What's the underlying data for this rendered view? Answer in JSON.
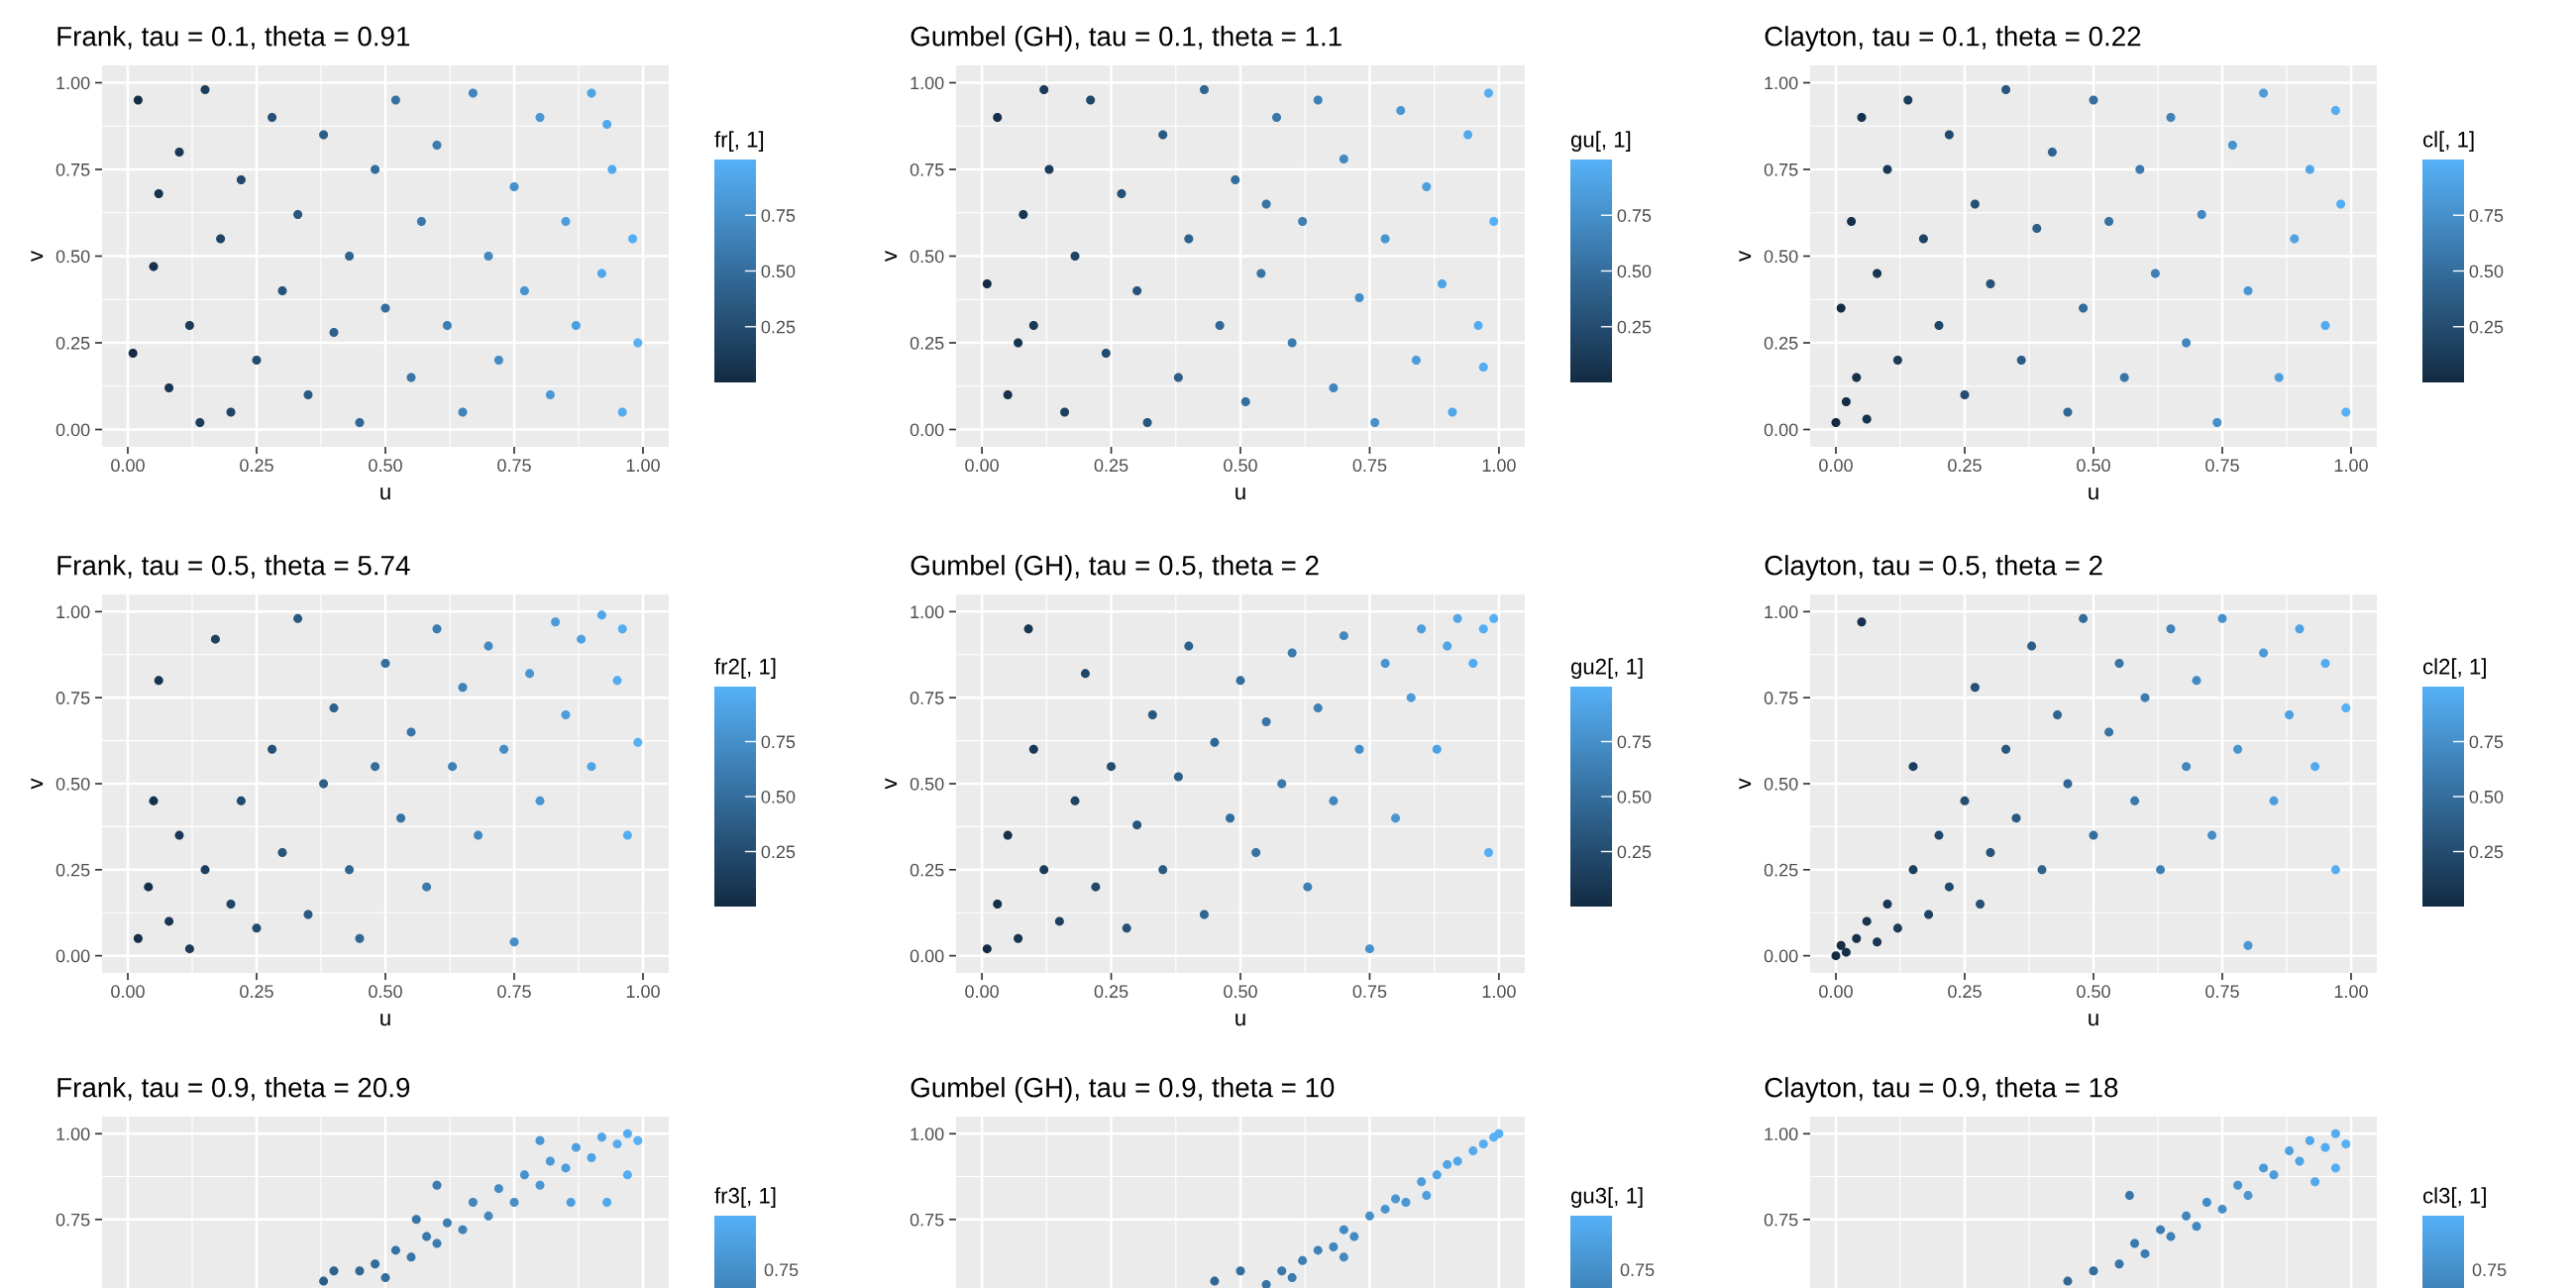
{
  "chart_data": [
    {
      "type": "scatter",
      "title": "Frank, tau = 0.1, theta = 0.91",
      "xlabel": "u",
      "ylabel": "v",
      "clabel": "fr[, 1]",
      "xlim": [
        -0.05,
        1.05
      ],
      "ylim": [
        -0.05,
        1.05
      ],
      "xticks": [
        {
          "value": 0,
          "label": "0.00"
        },
        {
          "value": 0.25,
          "label": "0.25"
        },
        {
          "value": 0.5,
          "label": "0.50"
        },
        {
          "value": 0.75,
          "label": "0.75"
        },
        {
          "value": 1,
          "label": "1.00"
        }
      ],
      "yticks": [
        {
          "value": 0,
          "label": "0.00"
        },
        {
          "value": 0.25,
          "label": "0.25"
        },
        {
          "value": 0.5,
          "label": "0.50"
        },
        {
          "value": 0.75,
          "label": "0.75"
        },
        {
          "value": 1,
          "label": "1.00"
        }
      ],
      "clim": [
        0,
        1
      ],
      "cticks": [
        {
          "value": 0.25,
          "label": "0.25"
        },
        {
          "value": 0.5,
          "label": "0.50"
        },
        {
          "value": 0.75,
          "label": "0.75"
        }
      ],
      "grid": true,
      "marker": "circle",
      "x": [
        0.02,
        0.05,
        0.08,
        0.1,
        0.12,
        0.15,
        0.18,
        0.2,
        0.22,
        0.25,
        0.28,
        0.3,
        0.33,
        0.35,
        0.38,
        0.4,
        0.43,
        0.45,
        0.48,
        0.5,
        0.52,
        0.55,
        0.57,
        0.6,
        0.62,
        0.65,
        0.67,
        0.7,
        0.72,
        0.75,
        0.77,
        0.8,
        0.82,
        0.85,
        0.87,
        0.9,
        0.92,
        0.94,
        0.96,
        0.98,
        0.99,
        0.01,
        0.06,
        0.14,
        0.93
      ],
      "values": [
        0.95,
        0.47,
        0.12,
        0.8,
        0.3,
        0.98,
        0.55,
        0.05,
        0.72,
        0.2,
        0.9,
        0.4,
        0.62,
        0.1,
        0.85,
        0.28,
        0.5,
        0.02,
        0.75,
        0.35,
        0.95,
        0.15,
        0.6,
        0.82,
        0.3,
        0.05,
        0.97,
        0.5,
        0.2,
        0.7,
        0.4,
        0.9,
        0.1,
        0.6,
        0.3,
        0.97,
        0.45,
        0.75,
        0.05,
        0.55,
        0.25,
        0.22,
        0.68,
        0.02,
        0.88
      ],
      "cvalues": [
        0.02,
        0.05,
        0.08,
        0.1,
        0.12,
        0.15,
        0.18,
        0.2,
        0.22,
        0.25,
        0.28,
        0.3,
        0.33,
        0.35,
        0.38,
        0.4,
        0.43,
        0.45,
        0.48,
        0.5,
        0.52,
        0.55,
        0.57,
        0.6,
        0.62,
        0.65,
        0.67,
        0.7,
        0.72,
        0.75,
        0.77,
        0.8,
        0.82,
        0.85,
        0.87,
        0.9,
        0.92,
        0.94,
        0.96,
        0.98,
        0.99,
        0.01,
        0.06,
        0.14,
        0.93
      ]
    },
    {
      "type": "scatter",
      "title": "Gumbel (GH), tau = 0.1, theta = 1.1",
      "xlabel": "u",
      "ylabel": "v",
      "clabel": "gu[, 1]",
      "xlim": [
        -0.05,
        1.05
      ],
      "ylim": [
        -0.05,
        1.05
      ],
      "xticks": [
        {
          "value": 0,
          "label": "0.00"
        },
        {
          "value": 0.25,
          "label": "0.25"
        },
        {
          "value": 0.5,
          "label": "0.50"
        },
        {
          "value": 0.75,
          "label": "0.75"
        },
        {
          "value": 1,
          "label": "1.00"
        }
      ],
      "yticks": [
        {
          "value": 0,
          "label": "0.00"
        },
        {
          "value": 0.25,
          "label": "0.25"
        },
        {
          "value": 0.5,
          "label": "0.50"
        },
        {
          "value": 0.75,
          "label": "0.75"
        },
        {
          "value": 1,
          "label": "1.00"
        }
      ],
      "clim": [
        0,
        1
      ],
      "cticks": [
        {
          "value": 0.25,
          "label": "0.25"
        },
        {
          "value": 0.5,
          "label": "0.50"
        },
        {
          "value": 0.75,
          "label": "0.75"
        }
      ],
      "grid": true,
      "marker": "circle",
      "x": [
        0.01,
        0.03,
        0.05,
        0.08,
        0.1,
        0.13,
        0.16,
        0.18,
        0.21,
        0.24,
        0.27,
        0.3,
        0.32,
        0.35,
        0.38,
        0.4,
        0.43,
        0.46,
        0.49,
        0.51,
        0.54,
        0.57,
        0.6,
        0.62,
        0.65,
        0.68,
        0.7,
        0.73,
        0.76,
        0.78,
        0.81,
        0.84,
        0.86,
        0.89,
        0.91,
        0.94,
        0.96,
        0.98,
        0.99,
        0.97,
        0.07,
        0.12,
        0.55
      ],
      "values": [
        0.42,
        0.9,
        0.1,
        0.62,
        0.3,
        0.75,
        0.05,
        0.5,
        0.95,
        0.22,
        0.68,
        0.4,
        0.02,
        0.85,
        0.15,
        0.55,
        0.98,
        0.3,
        0.72,
        0.08,
        0.45,
        0.9,
        0.25,
        0.6,
        0.95,
        0.12,
        0.78,
        0.38,
        0.02,
        0.55,
        0.92,
        0.2,
        0.7,
        0.42,
        0.05,
        0.85,
        0.3,
        0.97,
        0.6,
        0.18,
        0.25,
        0.98,
        0.65
      ],
      "cvalues": [
        0.01,
        0.03,
        0.05,
        0.08,
        0.1,
        0.13,
        0.16,
        0.18,
        0.21,
        0.24,
        0.27,
        0.3,
        0.32,
        0.35,
        0.38,
        0.4,
        0.43,
        0.46,
        0.49,
        0.51,
        0.54,
        0.57,
        0.6,
        0.62,
        0.65,
        0.68,
        0.7,
        0.73,
        0.76,
        0.78,
        0.81,
        0.84,
        0.86,
        0.89,
        0.91,
        0.94,
        0.96,
        0.98,
        0.99,
        0.97,
        0.07,
        0.12,
        0.55
      ]
    },
    {
      "type": "scatter",
      "title": "Clayton, tau = 0.1, theta = 0.22",
      "xlabel": "u",
      "ylabel": "v",
      "clabel": "cl[, 1]",
      "xlim": [
        -0.05,
        1.05
      ],
      "ylim": [
        -0.05,
        1.05
      ],
      "xticks": [
        {
          "value": 0,
          "label": "0.00"
        },
        {
          "value": 0.25,
          "label": "0.25"
        },
        {
          "value": 0.5,
          "label": "0.50"
        },
        {
          "value": 0.75,
          "label": "0.75"
        },
        {
          "value": 1,
          "label": "1.00"
        }
      ],
      "yticks": [
        {
          "value": 0,
          "label": "0.00"
        },
        {
          "value": 0.25,
          "label": "0.25"
        },
        {
          "value": 0.5,
          "label": "0.50"
        },
        {
          "value": 0.75,
          "label": "0.75"
        },
        {
          "value": 1,
          "label": "1.00"
        }
      ],
      "clim": [
        0,
        1
      ],
      "cticks": [
        {
          "value": 0.25,
          "label": "0.25"
        },
        {
          "value": 0.5,
          "label": "0.50"
        },
        {
          "value": 0.75,
          "label": "0.75"
        }
      ],
      "grid": true,
      "marker": "circle",
      "x": [
        0.0,
        0.02,
        0.04,
        0.06,
        0.01,
        0.03,
        0.05,
        0.08,
        0.1,
        0.12,
        0.14,
        0.17,
        0.2,
        0.22,
        0.25,
        0.27,
        0.3,
        0.33,
        0.36,
        0.39,
        0.42,
        0.45,
        0.48,
        0.5,
        0.53,
        0.56,
        0.59,
        0.62,
        0.65,
        0.68,
        0.71,
        0.74,
        0.77,
        0.8,
        0.83,
        0.86,
        0.89,
        0.92,
        0.95,
        0.97,
        0.99,
        0.98
      ],
      "values": [
        0.02,
        0.08,
        0.15,
        0.03,
        0.35,
        0.6,
        0.9,
        0.45,
        0.75,
        0.2,
        0.95,
        0.55,
        0.3,
        0.85,
        0.1,
        0.65,
        0.42,
        0.98,
        0.2,
        0.58,
        0.8,
        0.05,
        0.35,
        0.95,
        0.6,
        0.15,
        0.75,
        0.45,
        0.9,
        0.25,
        0.62,
        0.02,
        0.82,
        0.4,
        0.97,
        0.15,
        0.55,
        0.75,
        0.3,
        0.92,
        0.05,
        0.65
      ],
      "cvalues": [
        0.0,
        0.02,
        0.04,
        0.06,
        0.01,
        0.03,
        0.05,
        0.08,
        0.1,
        0.12,
        0.14,
        0.17,
        0.2,
        0.22,
        0.25,
        0.27,
        0.3,
        0.33,
        0.36,
        0.39,
        0.42,
        0.45,
        0.48,
        0.5,
        0.53,
        0.56,
        0.59,
        0.62,
        0.65,
        0.68,
        0.71,
        0.74,
        0.77,
        0.8,
        0.83,
        0.86,
        0.89,
        0.92,
        0.95,
        0.97,
        0.99,
        0.98
      ]
    },
    {
      "type": "scatter",
      "title": "Frank, tau = 0.5, theta = 5.74",
      "xlabel": "u",
      "ylabel": "v",
      "clabel": "fr2[, 1]",
      "xlim": [
        -0.05,
        1.05
      ],
      "ylim": [
        -0.05,
        1.05
      ],
      "xticks": [
        {
          "value": 0,
          "label": "0.00"
        },
        {
          "value": 0.25,
          "label": "0.25"
        },
        {
          "value": 0.5,
          "label": "0.50"
        },
        {
          "value": 0.75,
          "label": "0.75"
        },
        {
          "value": 1,
          "label": "1.00"
        }
      ],
      "yticks": [
        {
          "value": 0,
          "label": "0.00"
        },
        {
          "value": 0.25,
          "label": "0.25"
        },
        {
          "value": 0.5,
          "label": "0.50"
        },
        {
          "value": 0.75,
          "label": "0.75"
        },
        {
          "value": 1,
          "label": "1.00"
        }
      ],
      "clim": [
        0,
        1
      ],
      "cticks": [
        {
          "value": 0.25,
          "label": "0.25"
        },
        {
          "value": 0.5,
          "label": "0.50"
        },
        {
          "value": 0.75,
          "label": "0.75"
        }
      ],
      "grid": true,
      "marker": "circle",
      "x": [
        0.02,
        0.04,
        0.06,
        0.08,
        0.1,
        0.12,
        0.15,
        0.17,
        0.2,
        0.22,
        0.25,
        0.28,
        0.3,
        0.33,
        0.35,
        0.38,
        0.4,
        0.43,
        0.45,
        0.48,
        0.5,
        0.53,
        0.55,
        0.58,
        0.6,
        0.63,
        0.65,
        0.68,
        0.7,
        0.73,
        0.75,
        0.78,
        0.8,
        0.83,
        0.85,
        0.88,
        0.9,
        0.92,
        0.95,
        0.97,
        0.99,
        0.96,
        0.05
      ],
      "values": [
        0.05,
        0.2,
        0.8,
        0.1,
        0.35,
        0.02,
        0.25,
        0.92,
        0.15,
        0.45,
        0.08,
        0.6,
        0.3,
        0.98,
        0.12,
        0.5,
        0.72,
        0.25,
        0.05,
        0.55,
        0.85,
        0.4,
        0.65,
        0.2,
        0.95,
        0.55,
        0.78,
        0.35,
        0.9,
        0.6,
        0.04,
        0.82,
        0.45,
        0.97,
        0.7,
        0.92,
        0.55,
        0.99,
        0.8,
        0.35,
        0.62,
        0.95,
        0.45
      ],
      "cvalues": [
        0.02,
        0.04,
        0.06,
        0.08,
        0.1,
        0.12,
        0.15,
        0.17,
        0.2,
        0.22,
        0.25,
        0.28,
        0.3,
        0.33,
        0.35,
        0.38,
        0.4,
        0.43,
        0.45,
        0.48,
        0.5,
        0.53,
        0.55,
        0.58,
        0.6,
        0.63,
        0.65,
        0.68,
        0.7,
        0.73,
        0.75,
        0.78,
        0.8,
        0.83,
        0.85,
        0.88,
        0.9,
        0.92,
        0.95,
        0.97,
        0.99,
        0.96,
        0.05
      ]
    },
    {
      "type": "scatter",
      "title": "Gumbel (GH), tau = 0.5, theta = 2",
      "xlabel": "u",
      "ylabel": "v",
      "clabel": "gu2[, 1]",
      "xlim": [
        -0.05,
        1.05
      ],
      "ylim": [
        -0.05,
        1.05
      ],
      "xticks": [
        {
          "value": 0,
          "label": "0.00"
        },
        {
          "value": 0.25,
          "label": "0.25"
        },
        {
          "value": 0.5,
          "label": "0.50"
        },
        {
          "value": 0.75,
          "label": "0.75"
        },
        {
          "value": 1,
          "label": "1.00"
        }
      ],
      "yticks": [
        {
          "value": 0,
          "label": "0.00"
        },
        {
          "value": 0.25,
          "label": "0.25"
        },
        {
          "value": 0.5,
          "label": "0.50"
        },
        {
          "value": 0.75,
          "label": "0.75"
        },
        {
          "value": 1,
          "label": "1.00"
        }
      ],
      "clim": [
        0,
        1
      ],
      "cticks": [
        {
          "value": 0.25,
          "label": "0.25"
        },
        {
          "value": 0.5,
          "label": "0.50"
        },
        {
          "value": 0.75,
          "label": "0.75"
        }
      ],
      "grid": true,
      "marker": "circle",
      "x": [
        0.01,
        0.03,
        0.05,
        0.07,
        0.09,
        0.1,
        0.12,
        0.15,
        0.18,
        0.2,
        0.22,
        0.25,
        0.28,
        0.3,
        0.33,
        0.35,
        0.38,
        0.4,
        0.43,
        0.45,
        0.48,
        0.5,
        0.53,
        0.55,
        0.58,
        0.6,
        0.63,
        0.65,
        0.68,
        0.7,
        0.73,
        0.75,
        0.78,
        0.8,
        0.83,
        0.85,
        0.88,
        0.9,
        0.92,
        0.95,
        0.97,
        0.99,
        0.98
      ],
      "values": [
        0.02,
        0.15,
        0.35,
        0.05,
        0.95,
        0.6,
        0.25,
        0.1,
        0.45,
        0.82,
        0.2,
        0.55,
        0.08,
        0.38,
        0.7,
        0.25,
        0.52,
        0.9,
        0.12,
        0.62,
        0.4,
        0.8,
        0.3,
        0.68,
        0.5,
        0.88,
        0.2,
        0.72,
        0.45,
        0.93,
        0.6,
        0.02,
        0.85,
        0.4,
        0.75,
        0.95,
        0.6,
        0.9,
        0.98,
        0.85,
        0.95,
        0.98,
        0.3
      ],
      "cvalues": [
        0.01,
        0.03,
        0.05,
        0.07,
        0.09,
        0.1,
        0.12,
        0.15,
        0.18,
        0.2,
        0.22,
        0.25,
        0.28,
        0.3,
        0.33,
        0.35,
        0.38,
        0.4,
        0.43,
        0.45,
        0.48,
        0.5,
        0.53,
        0.55,
        0.58,
        0.6,
        0.63,
        0.65,
        0.68,
        0.7,
        0.73,
        0.75,
        0.78,
        0.8,
        0.83,
        0.85,
        0.88,
        0.9,
        0.92,
        0.95,
        0.97,
        0.99,
        0.98
      ]
    },
    {
      "type": "scatter",
      "title": "Clayton, tau = 0.5, theta = 2",
      "xlabel": "u",
      "ylabel": "v",
      "clabel": "cl2[, 1]",
      "xlim": [
        -0.05,
        1.05
      ],
      "ylim": [
        -0.05,
        1.05
      ],
      "xticks": [
        {
          "value": 0,
          "label": "0.00"
        },
        {
          "value": 0.25,
          "label": "0.25"
        },
        {
          "value": 0.5,
          "label": "0.50"
        },
        {
          "value": 0.75,
          "label": "0.75"
        },
        {
          "value": 1,
          "label": "1.00"
        }
      ],
      "yticks": [
        {
          "value": 0,
          "label": "0.00"
        },
        {
          "value": 0.25,
          "label": "0.25"
        },
        {
          "value": 0.5,
          "label": "0.50"
        },
        {
          "value": 0.75,
          "label": "0.75"
        },
        {
          "value": 1,
          "label": "1.00"
        }
      ],
      "clim": [
        0,
        1
      ],
      "cticks": [
        {
          "value": 0.25,
          "label": "0.25"
        },
        {
          "value": 0.5,
          "label": "0.50"
        },
        {
          "value": 0.75,
          "label": "0.75"
        }
      ],
      "grid": true,
      "marker": "circle",
      "x": [
        0.0,
        0.01,
        0.02,
        0.04,
        0.05,
        0.06,
        0.08,
        0.1,
        0.12,
        0.15,
        0.15,
        0.18,
        0.2,
        0.22,
        0.25,
        0.27,
        0.28,
        0.3,
        0.33,
        0.35,
        0.38,
        0.4,
        0.43,
        0.45,
        0.48,
        0.5,
        0.53,
        0.55,
        0.58,
        0.6,
        0.63,
        0.65,
        0.68,
        0.7,
        0.73,
        0.75,
        0.78,
        0.8,
        0.83,
        0.85,
        0.88,
        0.9,
        0.93,
        0.95,
        0.97,
        0.99
      ],
      "values": [
        0.0,
        0.03,
        0.01,
        0.05,
        0.97,
        0.1,
        0.04,
        0.15,
        0.08,
        0.25,
        0.55,
        0.12,
        0.35,
        0.2,
        0.45,
        0.78,
        0.15,
        0.3,
        0.6,
        0.4,
        0.9,
        0.25,
        0.7,
        0.5,
        0.98,
        0.35,
        0.65,
        0.85,
        0.45,
        0.75,
        0.25,
        0.95,
        0.55,
        0.8,
        0.35,
        0.98,
        0.6,
        0.03,
        0.88,
        0.45,
        0.7,
        0.95,
        0.55,
        0.85,
        0.25,
        0.72
      ],
      "cvalues": [
        0.0,
        0.01,
        0.02,
        0.04,
        0.05,
        0.06,
        0.08,
        0.1,
        0.12,
        0.15,
        0.15,
        0.18,
        0.2,
        0.22,
        0.25,
        0.27,
        0.28,
        0.3,
        0.33,
        0.35,
        0.38,
        0.4,
        0.43,
        0.45,
        0.48,
        0.5,
        0.53,
        0.55,
        0.58,
        0.6,
        0.63,
        0.65,
        0.68,
        0.7,
        0.73,
        0.75,
        0.78,
        0.8,
        0.83,
        0.85,
        0.88,
        0.9,
        0.93,
        0.95,
        0.97,
        0.99
      ]
    },
    {
      "type": "scatter",
      "title": "Frank, tau = 0.9, theta = 20.9",
      "clabel": "fr3[, 1]",
      "annotations": [
        "0.75"
      ],
      "xlim": [
        -0.05,
        1.05
      ],
      "ylim": [
        0.55,
        1.05
      ],
      "xticks": [
        {
          "value": 0,
          "label": null
        },
        {
          "value": 0.25,
          "label": null
        },
        {
          "value": 0.5,
          "label": null
        },
        {
          "value": 0.75,
          "label": null
        },
        {
          "value": 1,
          "label": null
        }
      ],
      "yticks": [
        {
          "value": 0.75,
          "label": "0.75"
        },
        {
          "value": 1,
          "label": "1.00"
        }
      ],
      "tick_labels": "y",
      "grid": true,
      "marker": "circle",
      "x": [
        0.38,
        0.4,
        0.45,
        0.48,
        0.5,
        0.52,
        0.55,
        0.58,
        0.6,
        0.62,
        0.65,
        0.67,
        0.7,
        0.72,
        0.75,
        0.77,
        0.8,
        0.82,
        0.85,
        0.87,
        0.9,
        0.92,
        0.95,
        0.97,
        0.99,
        0.93,
        0.86,
        0.6,
        0.56,
        0.97,
        0.8
      ],
      "values": [
        0.57,
        0.6,
        0.6,
        0.62,
        0.58,
        0.66,
        0.64,
        0.7,
        0.68,
        0.74,
        0.72,
        0.8,
        0.76,
        0.84,
        0.8,
        0.88,
        0.85,
        0.92,
        0.9,
        0.96,
        0.93,
        0.99,
        0.97,
        1.0,
        0.98,
        0.8,
        0.8,
        0.85,
        0.75,
        0.88,
        0.98
      ],
      "colors": [
        "#2d5e87",
        "#2e618b",
        "#316794",
        "#336b99",
        "#346e9d",
        "#3671a1",
        "#3875a6",
        "#3a79ab",
        "#3b7baf",
        "#3d7eb3",
        "#3f82b8",
        "#4085bc",
        "#4289c1",
        "#438bc5",
        "#4590ca",
        "#4792ce",
        "#4996d3",
        "#4a99d7",
        "#4c9ddc",
        "#4da0e0",
        "#4fa4e5",
        "#51a6e9",
        "#53aaee",
        "#54adf2",
        "#55b0f5",
        "#51a8ea",
        "#4d9ede",
        "#3b7baf",
        "#3976a8",
        "#54adf2",
        "#4996d3"
      ]
    },
    {
      "type": "scatter",
      "title": "Gumbel (GH), tau = 0.9, theta = 10",
      "clabel": "gu3[, 1]",
      "annotations": [
        "0.75"
      ],
      "xlim": [
        -0.05,
        1.05
      ],
      "ylim": [
        0.55,
        1.05
      ],
      "xticks": [
        {
          "value": 0,
          "label": null
        },
        {
          "value": 0.25,
          "label": null
        },
        {
          "value": 0.5,
          "label": null
        },
        {
          "value": 0.75,
          "label": null
        },
        {
          "value": 1,
          "label": null
        }
      ],
      "yticks": [
        {
          "value": 0.75,
          "label": "0.75"
        },
        {
          "value": 1,
          "label": "1.00"
        }
      ],
      "tick_labels": "y",
      "grid": true,
      "marker": "circle",
      "x": [
        0.55,
        0.58,
        0.6,
        0.62,
        0.65,
        0.68,
        0.7,
        0.72,
        0.75,
        0.78,
        0.8,
        0.82,
        0.85,
        0.88,
        0.9,
        0.92,
        0.95,
        0.97,
        0.99,
        1.0,
        0.5,
        0.45,
        0.7,
        0.86
      ],
      "values": [
        0.56,
        0.6,
        0.58,
        0.63,
        0.66,
        0.67,
        0.72,
        0.7,
        0.76,
        0.78,
        0.81,
        0.8,
        0.86,
        0.88,
        0.91,
        0.92,
        0.95,
        0.97,
        0.99,
        1.0,
        0.6,
        0.57,
        0.64,
        0.82
      ],
      "colors": [
        "#3875a6",
        "#3a79ab",
        "#3b7baf",
        "#3d7eb3",
        "#3f82b8",
        "#4186bd",
        "#4289c1",
        "#438bc5",
        "#4590ca",
        "#4794cf",
        "#4996d3",
        "#4a99d7",
        "#4c9ddc",
        "#4ea1e1",
        "#4fa4e5",
        "#51a6e9",
        "#53aaee",
        "#54adf2",
        "#55b0f5",
        "#56b1f7",
        "#346e9d",
        "#316794",
        "#4289c1",
        "#4d9ede"
      ]
    },
    {
      "type": "scatter",
      "title": "Clayton, tau = 0.9, theta = 18",
      "clabel": "cl3[, 1]",
      "annotations": [
        "0.75"
      ],
      "xlim": [
        -0.05,
        1.05
      ],
      "ylim": [
        0.55,
        1.05
      ],
      "xticks": [
        {
          "value": 0,
          "label": null
        },
        {
          "value": 0.25,
          "label": null
        },
        {
          "value": 0.5,
          "label": null
        },
        {
          "value": 0.75,
          "label": null
        },
        {
          "value": 1,
          "label": null
        }
      ],
      "yticks": [
        {
          "value": 0.75,
          "label": "0.75"
        },
        {
          "value": 1,
          "label": "1.00"
        }
      ],
      "tick_labels": "y",
      "grid": true,
      "marker": "circle",
      "x": [
        0.45,
        0.5,
        0.55,
        0.58,
        0.6,
        0.63,
        0.65,
        0.68,
        0.7,
        0.72,
        0.75,
        0.78,
        0.8,
        0.83,
        0.85,
        0.88,
        0.9,
        0.92,
        0.95,
        0.97,
        0.99,
        0.57,
        0.93,
        0.97
      ],
      "values": [
        0.57,
        0.6,
        0.62,
        0.68,
        0.65,
        0.72,
        0.7,
        0.76,
        0.73,
        0.8,
        0.78,
        0.85,
        0.82,
        0.9,
        0.88,
        0.95,
        0.92,
        0.98,
        0.96,
        1.0,
        0.97,
        0.82,
        0.86,
        0.9
      ],
      "colors": [
        "#316794",
        "#346e9d",
        "#3875a6",
        "#3a79ab",
        "#3b7baf",
        "#3d7fb4",
        "#3f82b8",
        "#4186bd",
        "#4289c1",
        "#438bc5",
        "#4590ca",
        "#4794cf",
        "#4996d3",
        "#4b9ad8",
        "#4c9ddc",
        "#4ea1e1",
        "#4fa4e5",
        "#51a6e9",
        "#53aaee",
        "#54adf2",
        "#55b0f5",
        "#3977aa",
        "#51a8ea",
        "#54adf2"
      ]
    }
  ]
}
